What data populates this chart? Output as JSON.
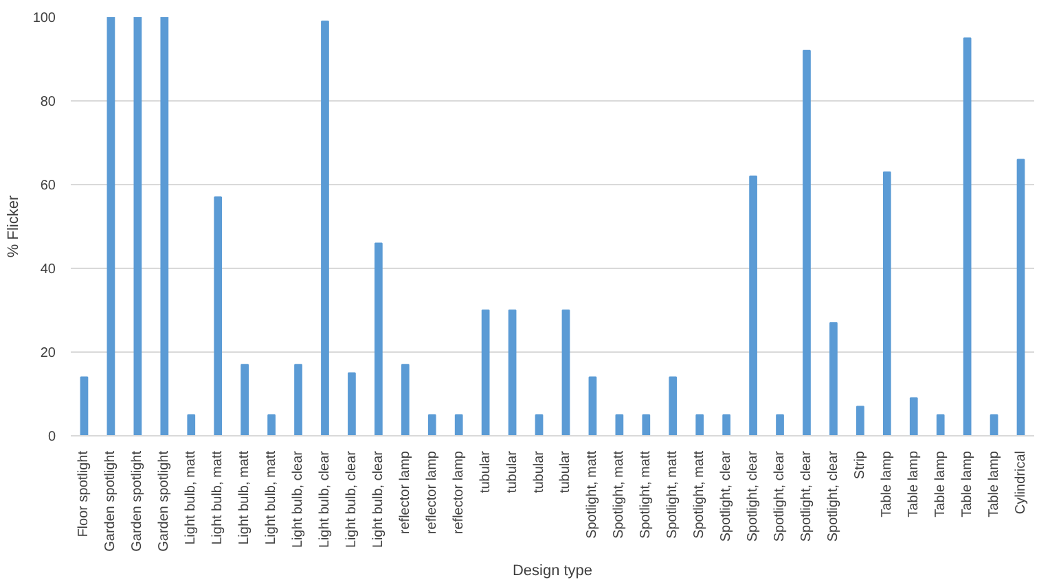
{
  "chart_data": {
    "type": "bar",
    "xlabel": "Design type",
    "ylabel": "% Flicker",
    "categories": [
      "Floor spotlight",
      "Garden spotlight",
      "Garden spotlight",
      "Garden spotlight",
      "Light bulb, matt",
      "Light bulb, matt",
      "Light bulb, matt",
      "Light bulb, matt",
      "Light bulb, clear",
      "Light bulb, clear",
      "Light bulb, clear",
      "Light bulb, clear",
      "reflector lamp",
      "reflector lamp",
      "reflector lamp",
      "tubular",
      "tubular",
      "tubular",
      "tubular",
      "Spotlight, matt",
      "Spotlight, matt",
      "Spotlight, matt",
      "Spotlight, matt",
      "Spotlight, matt",
      "Spotlight, clear",
      "Spotlight, clear",
      "Spotlight, clear",
      "Spotlight, clear",
      "Spotlight, clear",
      "Strip",
      "Table lamp",
      "Table lamp",
      "Table lamp",
      "Table lamp",
      "Table lamp",
      "Cylindrical"
    ],
    "values": [
      14,
      100,
      100,
      100,
      5,
      57,
      17,
      5,
      17,
      99,
      15,
      46,
      17,
      5,
      5,
      30,
      30,
      5,
      30,
      14,
      5,
      5,
      14,
      5,
      5,
      62,
      5,
      92,
      27,
      7,
      63,
      9,
      5,
      95,
      5,
      66
    ],
    "color": "#5b9bd5",
    "ylim": [
      0,
      100
    ],
    "yticks": [
      0,
      20,
      40,
      60,
      80,
      100
    ],
    "grid": "y"
  }
}
